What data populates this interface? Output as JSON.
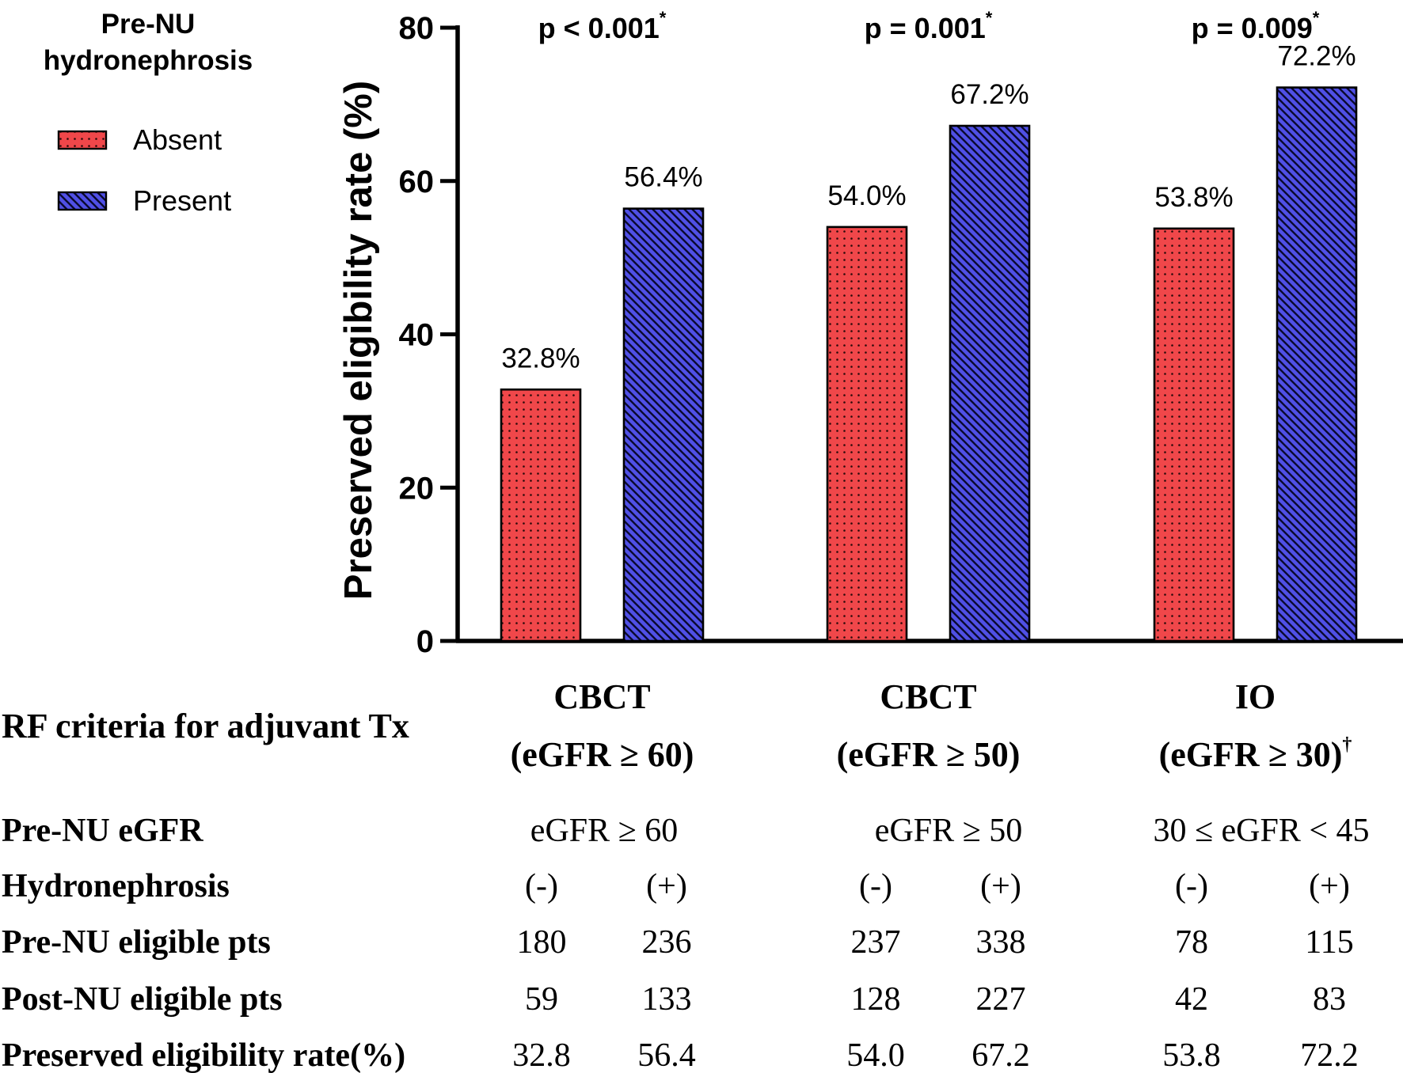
{
  "chart_data": {
    "type": "bar",
    "ylabel": "Preserved eligibility rate (%)",
    "ylim": [
      0,
      80
    ],
    "yticks": [
      0,
      20,
      40,
      60,
      80
    ],
    "legend": {
      "title_line1": "Pre-NU",
      "title_line2": "hydronephrosis",
      "position": "top-left",
      "entries": [
        "Absent",
        "Present"
      ]
    },
    "series": [
      {
        "name": "Absent",
        "color": "#f0474a",
        "pattern": "dots",
        "values": [
          32.8,
          54.0,
          53.8
        ],
        "labels": [
          "32.8%",
          "54.0%",
          "53.8%"
        ]
      },
      {
        "name": "Present",
        "color": "#5050e6",
        "pattern": "hatch",
        "values": [
          56.4,
          67.2,
          72.2
        ],
        "labels": [
          "56.4%",
          "67.2%",
          "72.2%"
        ]
      }
    ],
    "groups": [
      {
        "p_text": "p < 0.001",
        "p_mark": "*",
        "label_line1": "CBCT",
        "label_line2": "(eGFR ≥ 60)",
        "label_mark": ""
      },
      {
        "p_text": "p = 0.001",
        "p_mark": "*",
        "label_line1": "CBCT",
        "label_line2": "(eGFR ≥ 50)",
        "label_mark": ""
      },
      {
        "p_text": "p = 0.009",
        "p_mark": "*",
        "label_line1": "IO",
        "label_line2": "(eGFR ≥ 30)",
        "label_mark": "†"
      }
    ]
  },
  "table": {
    "header_label": "RF criteria for adjuvant Tx",
    "rows": [
      {
        "label": "Pre-NU eGFR",
        "spans": [
          "eGFR ≥ 60",
          "eGFR ≥ 50",
          "30 ≤ eGFR < 45"
        ]
      },
      {
        "label": "Hydronephrosis",
        "cells": [
          "(-)",
          "(+)",
          "(-)",
          "(+)",
          "(-)",
          "(+)"
        ]
      },
      {
        "label": "Pre-NU eligible pts",
        "cells": [
          "180",
          "236",
          "237",
          "338",
          "78",
          "115"
        ]
      },
      {
        "label": "Post-NU eligible pts",
        "cells": [
          "59",
          "133",
          "128",
          "227",
          "42",
          "83"
        ]
      },
      {
        "label": "Preserved eligibility rate(%)",
        "cells": [
          "32.8",
          "56.4",
          "54.0",
          "67.2",
          "53.8",
          "72.2"
        ]
      }
    ]
  }
}
